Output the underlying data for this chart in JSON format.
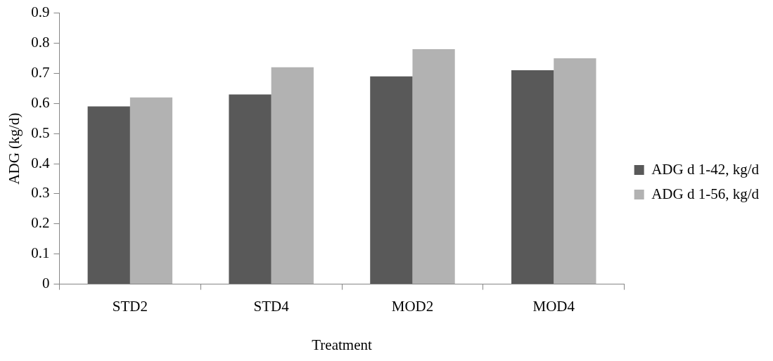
{
  "chart_data": {
    "type": "bar",
    "xlabel": "Treatment",
    "ylabel": "ADG (kg/d)",
    "categories": [
      "STD2",
      "STD4",
      "MOD2",
      "MOD4"
    ],
    "series": [
      {
        "name": "ADG d 1-42, kg/d",
        "color": "#595959",
        "values": [
          0.59,
          0.63,
          0.69,
          0.71
        ]
      },
      {
        "name": "ADG d 1-56, kg/d",
        "color": "#b2b2b2",
        "values": [
          0.62,
          0.72,
          0.78,
          0.75
        ]
      }
    ],
    "ylim": [
      0,
      0.9
    ],
    "yticks": [
      0,
      0.1,
      0.2,
      0.3,
      0.4,
      0.5,
      0.6,
      0.7,
      0.8,
      0.9
    ],
    "grid": false,
    "legend": "right"
  }
}
